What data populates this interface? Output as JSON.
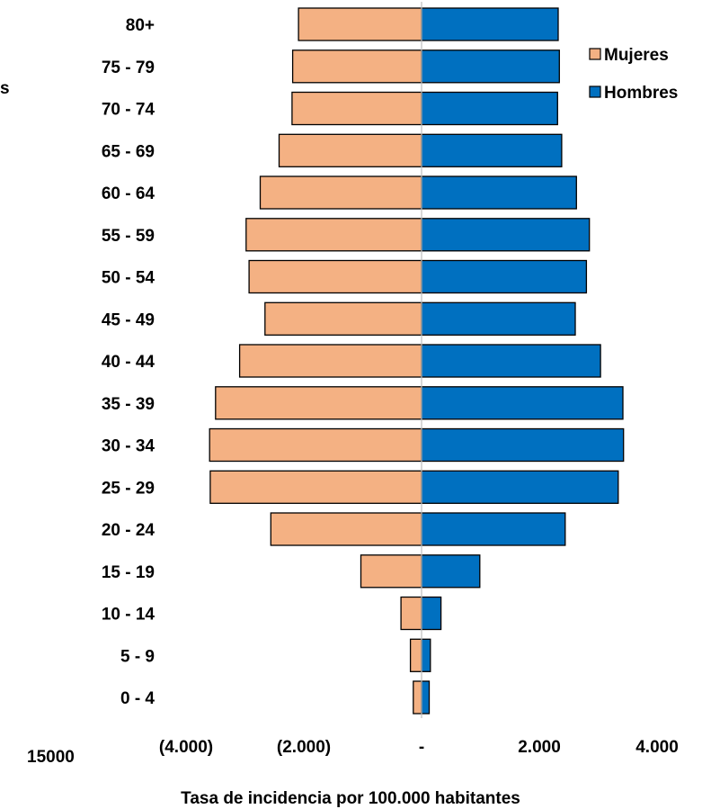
{
  "chart_data": {
    "type": "bar",
    "orientation": "horizontal",
    "layout": "population-pyramid",
    "categories": [
      "0 - 4",
      "5 - 9",
      "10 - 14",
      "15 - 19",
      "20 - 24",
      "25 - 29",
      "30 - 34",
      "35 - 39",
      "40 - 44",
      "45 - 49",
      "50 - 54",
      "55 - 59",
      "60 - 64",
      "65 - 69",
      "70 - 74",
      "75 - 79",
      "80+"
    ],
    "series": [
      {
        "name": "Mujeres",
        "color": "#F4B183",
        "values": [
          -140,
          -190,
          -350,
          -1030,
          -2560,
          -3590,
          -3600,
          -3500,
          -3090,
          -2660,
          -2930,
          -2980,
          -2740,
          -2420,
          -2200,
          -2190,
          -2090
        ]
      },
      {
        "name": "Hombres",
        "color": "#0070C0",
        "values": [
          130,
          150,
          330,
          990,
          2440,
          3340,
          3430,
          3420,
          3040,
          2610,
          2800,
          2850,
          2630,
          2380,
          2310,
          2340,
          2320
        ]
      }
    ],
    "xlim": [
      -4000,
      4000
    ],
    "x_ticks": [
      -4000,
      -2000,
      0,
      2000,
      4000
    ],
    "x_tick_labels": [
      "(4.000)",
      "(2.000)",
      "-",
      "2.000",
      "4.000"
    ],
    "xlabel": "Tasa de incidencia por 100.000 habitantes",
    "ylabel": "",
    "title": "",
    "grid": false,
    "legend_position": "top-right",
    "stray_labels": [
      "15000",
      "s"
    ]
  }
}
